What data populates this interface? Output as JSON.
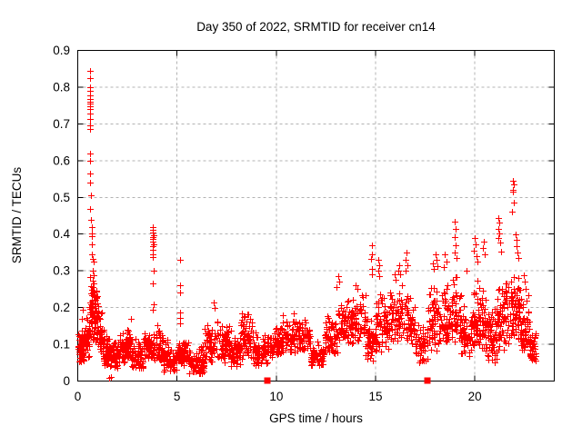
{
  "chart_data": {
    "type": "scatter",
    "title": "Day 350 of 2022, SRMTID for receiver cn14",
    "xlabel": "GPS time / hours",
    "ylabel": "SRMTID / TECUs",
    "xlim": [
      0,
      24
    ],
    "ylim": [
      0,
      0.9
    ],
    "xtick_values": [
      0,
      5,
      10,
      15,
      20
    ],
    "xtick_labels": [
      "0",
      "5",
      "10",
      "15",
      "20"
    ],
    "ytick_values": [
      0,
      0.1,
      0.2,
      0.3,
      0.4,
      0.5,
      0.6,
      0.7,
      0.8,
      0.9
    ],
    "ytick_labels": [
      "0",
      "0.1",
      "0.2",
      "0.3",
      "0.4",
      "0.5",
      "0.6",
      "0.7",
      "0.8",
      "0.9"
    ],
    "grid": true,
    "legend": "none",
    "marker": "plus",
    "marker_color": "#ff0000",
    "grid_color": "#b3b3b3",
    "axis_color": "#000000",
    "background_color": "#ffffff",
    "series_name": "SRMTID",
    "seed": 7,
    "axis_square_markers_x": [
      9.53,
      17.6
    ],
    "near_zero_points": [
      [
        1.6,
        0.008
      ],
      [
        1.67,
        0.012
      ]
    ],
    "spike_points": [
      [
        0.22,
        0.17
      ],
      [
        0.27,
        0.195
      ],
      [
        0.6,
        0.845
      ],
      [
        0.61,
        0.825
      ],
      [
        0.6,
        0.8
      ],
      [
        0.61,
        0.79
      ],
      [
        0.6,
        0.778
      ],
      [
        0.61,
        0.768
      ],
      [
        0.62,
        0.76
      ],
      [
        0.6,
        0.755
      ],
      [
        0.61,
        0.748
      ],
      [
        0.6,
        0.74
      ],
      [
        0.61,
        0.728
      ],
      [
        0.6,
        0.713
      ],
      [
        0.62,
        0.695
      ],
      [
        0.61,
        0.685
      ],
      [
        0.63,
        0.62
      ],
      [
        0.62,
        0.6
      ],
      [
        0.64,
        0.565
      ],
      [
        0.63,
        0.54
      ],
      [
        0.65,
        0.505
      ],
      [
        0.64,
        0.468
      ],
      [
        0.68,
        0.44
      ],
      [
        0.7,
        0.42
      ],
      [
        0.72,
        0.403
      ],
      [
        0.7,
        0.394
      ],
      [
        0.73,
        0.372
      ],
      [
        0.71,
        0.346
      ],
      [
        0.75,
        0.332
      ],
      [
        0.78,
        0.325
      ],
      [
        0.74,
        0.3
      ],
      [
        0.8,
        0.287
      ],
      [
        0.77,
        0.272
      ],
      [
        0.82,
        0.265
      ],
      [
        0.79,
        0.247
      ],
      [
        0.85,
        0.232
      ],
      [
        0.83,
        0.212
      ],
      [
        0.88,
        0.2
      ],
      [
        3.78,
        0.42
      ],
      [
        3.8,
        0.411
      ],
      [
        3.79,
        0.404
      ],
      [
        3.81,
        0.398
      ],
      [
        3.78,
        0.392
      ],
      [
        3.8,
        0.386
      ],
      [
        3.79,
        0.379
      ],
      [
        3.81,
        0.373
      ],
      [
        3.8,
        0.366
      ],
      [
        3.78,
        0.358
      ],
      [
        3.8,
        0.346
      ],
      [
        3.79,
        0.337
      ],
      [
        3.82,
        0.3
      ],
      [
        3.8,
        0.266
      ],
      [
        3.81,
        0.21
      ],
      [
        3.79,
        0.194
      ],
      [
        5.15,
        0.33
      ],
      [
        5.16,
        0.262
      ],
      [
        5.14,
        0.24
      ],
      [
        5.15,
        0.186
      ],
      [
        5.16,
        0.171
      ],
      [
        5.14,
        0.158
      ],
      [
        6.85,
        0.215
      ],
      [
        6.88,
        0.2
      ],
      [
        13.1,
        0.285
      ],
      [
        13.15,
        0.27
      ],
      [
        13.05,
        0.255
      ],
      [
        14.0,
        0.262
      ],
      [
        14.1,
        0.25
      ],
      [
        14.8,
        0.37
      ],
      [
        14.82,
        0.346
      ],
      [
        14.78,
        0.332
      ],
      [
        14.8,
        0.306
      ],
      [
        14.83,
        0.29
      ],
      [
        15.15,
        0.33
      ],
      [
        15.18,
        0.315
      ],
      [
        15.12,
        0.3
      ],
      [
        15.2,
        0.285
      ],
      [
        15.95,
        0.29
      ],
      [
        16.0,
        0.276
      ],
      [
        16.2,
        0.315
      ],
      [
        16.16,
        0.3
      ],
      [
        16.24,
        0.29
      ],
      [
        16.55,
        0.35
      ],
      [
        16.5,
        0.33
      ],
      [
        16.6,
        0.315
      ],
      [
        16.52,
        0.3
      ],
      [
        17.9,
        0.32
      ],
      [
        17.95,
        0.305
      ],
      [
        18.0,
        0.345
      ],
      [
        18.05,
        0.33
      ],
      [
        18.1,
        0.312
      ],
      [
        18.5,
        0.345
      ],
      [
        18.55,
        0.325
      ],
      [
        18.45,
        0.31
      ],
      [
        19.0,
        0.435
      ],
      [
        19.02,
        0.415
      ],
      [
        18.97,
        0.392
      ],
      [
        19.05,
        0.37
      ],
      [
        19.0,
        0.35
      ],
      [
        19.08,
        0.336
      ],
      [
        19.6,
        0.3
      ],
      [
        20.0,
        0.39
      ],
      [
        20.04,
        0.372
      ],
      [
        19.96,
        0.356
      ],
      [
        20.08,
        0.34
      ],
      [
        20.12,
        0.325
      ],
      [
        20.45,
        0.38
      ],
      [
        20.4,
        0.362
      ],
      [
        20.5,
        0.345
      ],
      [
        21.2,
        0.445
      ],
      [
        21.22,
        0.432
      ],
      [
        21.18,
        0.415
      ],
      [
        21.24,
        0.403
      ],
      [
        21.2,
        0.39
      ],
      [
        21.26,
        0.378
      ],
      [
        21.3,
        0.352
      ],
      [
        21.9,
        0.545
      ],
      [
        21.94,
        0.535
      ],
      [
        21.9,
        0.521
      ],
      [
        21.93,
        0.515
      ],
      [
        21.96,
        0.487
      ],
      [
        21.88,
        0.462
      ],
      [
        22.05,
        0.4
      ],
      [
        22.1,
        0.385
      ],
      [
        22.08,
        0.368
      ],
      [
        22.14,
        0.35
      ],
      [
        22.2,
        0.335
      ],
      [
        22.45,
        0.287
      ],
      [
        22.5,
        0.27
      ],
      [
        22.55,
        0.252
      ]
    ],
    "band_segments": [
      {
        "t0": 0.0,
        "t1": 0.35,
        "lo": 0.05,
        "hi": 0.14,
        "n": 55
      },
      {
        "t0": 0.35,
        "t1": 0.58,
        "lo": 0.06,
        "hi": 0.18,
        "n": 35
      },
      {
        "t0": 0.58,
        "t1": 0.8,
        "lo": 0.11,
        "hi": 0.3,
        "n": 45
      },
      {
        "t0": 0.8,
        "t1": 1.05,
        "lo": 0.09,
        "hi": 0.26,
        "n": 45
      },
      {
        "t0": 1.05,
        "t1": 1.3,
        "lo": 0.07,
        "hi": 0.19,
        "n": 40
      },
      {
        "t0": 1.3,
        "t1": 1.6,
        "lo": 0.04,
        "hi": 0.13,
        "n": 45
      },
      {
        "t0": 1.6,
        "t1": 2.1,
        "lo": 0.03,
        "hi": 0.12,
        "n": 60
      },
      {
        "t0": 2.1,
        "t1": 2.45,
        "lo": 0.05,
        "hi": 0.14,
        "n": 45
      },
      {
        "t0": 2.45,
        "t1": 2.7,
        "lo": 0.06,
        "hi": 0.185,
        "n": 35
      },
      {
        "t0": 2.7,
        "t1": 3.3,
        "lo": 0.03,
        "hi": 0.125,
        "n": 65
      },
      {
        "t0": 3.3,
        "t1": 3.75,
        "lo": 0.05,
        "hi": 0.15,
        "n": 50
      },
      {
        "t0": 3.75,
        "t1": 4.3,
        "lo": 0.05,
        "hi": 0.165,
        "n": 60
      },
      {
        "t0": 4.3,
        "t1": 5.0,
        "lo": 0.025,
        "hi": 0.115,
        "n": 70
      },
      {
        "t0": 5.0,
        "t1": 5.6,
        "lo": 0.04,
        "hi": 0.12,
        "n": 60
      },
      {
        "t0": 5.6,
        "t1": 6.4,
        "lo": 0.02,
        "hi": 0.1,
        "n": 80
      },
      {
        "t0": 6.4,
        "t1": 7.0,
        "lo": 0.05,
        "hi": 0.165,
        "n": 60
      },
      {
        "t0": 7.0,
        "t1": 7.7,
        "lo": 0.05,
        "hi": 0.18,
        "n": 70
      },
      {
        "t0": 7.7,
        "t1": 8.2,
        "lo": 0.04,
        "hi": 0.135,
        "n": 50
      },
      {
        "t0": 8.2,
        "t1": 8.8,
        "lo": 0.06,
        "hi": 0.2,
        "n": 60
      },
      {
        "t0": 8.8,
        "t1": 9.6,
        "lo": 0.04,
        "hi": 0.14,
        "n": 75
      },
      {
        "t0": 9.6,
        "t1": 10.2,
        "lo": 0.06,
        "hi": 0.155,
        "n": 60
      },
      {
        "t0": 10.2,
        "t1": 11.0,
        "lo": 0.07,
        "hi": 0.19,
        "n": 75
      },
      {
        "t0": 11.0,
        "t1": 11.7,
        "lo": 0.08,
        "hi": 0.175,
        "n": 65
      },
      {
        "t0": 11.7,
        "t1": 12.4,
        "lo": 0.04,
        "hi": 0.115,
        "n": 65
      },
      {
        "t0": 12.4,
        "t1": 13.1,
        "lo": 0.07,
        "hi": 0.19,
        "n": 65
      },
      {
        "t0": 13.1,
        "t1": 13.8,
        "lo": 0.1,
        "hi": 0.235,
        "n": 65
      },
      {
        "t0": 13.8,
        "t1": 14.5,
        "lo": 0.1,
        "hi": 0.25,
        "n": 65
      },
      {
        "t0": 14.5,
        "t1": 15.0,
        "lo": 0.05,
        "hi": 0.2,
        "n": 45
      },
      {
        "t0": 15.0,
        "t1": 15.7,
        "lo": 0.08,
        "hi": 0.25,
        "n": 65
      },
      {
        "t0": 15.7,
        "t1": 16.4,
        "lo": 0.1,
        "hi": 0.27,
        "n": 65
      },
      {
        "t0": 16.4,
        "t1": 17.0,
        "lo": 0.09,
        "hi": 0.26,
        "n": 55
      },
      {
        "t0": 17.0,
        "t1": 17.6,
        "lo": 0.04,
        "hi": 0.16,
        "n": 50
      },
      {
        "t0": 17.6,
        "t1": 18.3,
        "lo": 0.08,
        "hi": 0.27,
        "n": 65
      },
      {
        "t0": 18.3,
        "t1": 18.8,
        "lo": 0.1,
        "hi": 0.29,
        "n": 50
      },
      {
        "t0": 18.8,
        "t1": 19.3,
        "lo": 0.1,
        "hi": 0.3,
        "n": 50
      },
      {
        "t0": 19.3,
        "t1": 19.8,
        "lo": 0.06,
        "hi": 0.22,
        "n": 50
      },
      {
        "t0": 19.8,
        "t1": 20.3,
        "lo": 0.08,
        "hi": 0.28,
        "n": 55
      },
      {
        "t0": 20.3,
        "t1": 20.6,
        "lo": 0.08,
        "hi": 0.26,
        "n": 35
      },
      {
        "t0": 20.6,
        "t1": 21.1,
        "lo": 0.05,
        "hi": 0.22,
        "n": 60
      },
      {
        "t0": 21.1,
        "t1": 21.5,
        "lo": 0.08,
        "hi": 0.28,
        "n": 45
      },
      {
        "t0": 21.5,
        "t1": 22.0,
        "lo": 0.1,
        "hi": 0.3,
        "n": 55
      },
      {
        "t0": 22.0,
        "t1": 22.3,
        "lo": 0.1,
        "hi": 0.3,
        "n": 40
      },
      {
        "t0": 22.3,
        "t1": 22.75,
        "lo": 0.06,
        "hi": 0.24,
        "n": 55
      },
      {
        "t0": 22.75,
        "t1": 23.1,
        "lo": 0.05,
        "hi": 0.15,
        "n": 40
      }
    ]
  }
}
